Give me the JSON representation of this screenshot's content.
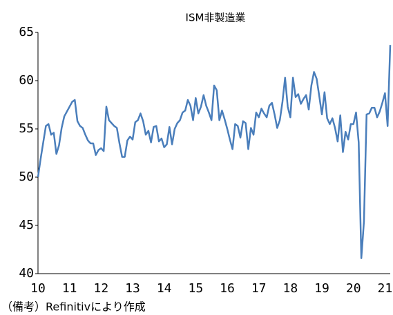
{
  "chart_data": {
    "type": "line",
    "title": "ISM非製造業",
    "note": "（備考）Refinitivにより作成",
    "categories": [
      "10",
      null,
      null,
      null,
      null,
      null,
      null,
      null,
      null,
      null,
      null,
      null,
      "11",
      null,
      null,
      null,
      null,
      null,
      null,
      null,
      null,
      null,
      null,
      null,
      "12",
      null,
      null,
      null,
      null,
      null,
      null,
      null,
      null,
      null,
      null,
      null,
      "13",
      null,
      null,
      null,
      null,
      null,
      null,
      null,
      null,
      null,
      null,
      null,
      "14",
      null,
      null,
      null,
      null,
      null,
      null,
      null,
      null,
      null,
      null,
      null,
      "15",
      null,
      null,
      null,
      null,
      null,
      null,
      null,
      null,
      null,
      null,
      null,
      "16",
      null,
      null,
      null,
      null,
      null,
      null,
      null,
      null,
      null,
      null,
      null,
      "17",
      null,
      null,
      null,
      null,
      null,
      null,
      null,
      null,
      null,
      null,
      null,
      "18",
      null,
      null,
      null,
      null,
      null,
      null,
      null,
      null,
      null,
      null,
      null,
      "19",
      null,
      null,
      null,
      null,
      null,
      null,
      null,
      null,
      null,
      null,
      null,
      "20",
      null,
      null,
      null,
      null,
      null,
      null,
      null,
      null,
      null,
      null,
      null,
      "21",
      null,
      null
    ],
    "values": [
      50.0,
      51.9,
      53.6,
      55.3,
      55.5,
      54.4,
      54.6,
      52.4,
      53.3,
      55.1,
      56.3,
      56.8,
      57.3,
      57.8,
      58.0,
      55.8,
      55.3,
      55.1,
      54.4,
      53.8,
      53.5,
      53.5,
      52.3,
      52.8,
      53.0,
      52.7,
      57.3,
      55.9,
      55.6,
      55.3,
      55.1,
      53.5,
      52.1,
      52.1,
      53.8,
      54.2,
      53.9,
      55.7,
      55.9,
      56.6,
      55.8,
      54.4,
      54.8,
      53.6,
      55.2,
      55.3,
      53.7,
      54.0,
      53.1,
      53.4,
      55.2,
      53.4,
      55.0,
      55.6,
      55.9,
      56.7,
      56.9,
      58.0,
      57.4,
      55.9,
      58.2,
      56.6,
      57.3,
      58.5,
      57.4,
      56.7,
      55.9,
      59.5,
      59.0,
      55.9,
      56.9,
      56.0,
      55.0,
      53.9,
      52.9,
      55.5,
      55.3,
      54.1,
      55.8,
      55.6,
      52.9,
      55.1,
      54.4,
      56.7,
      56.2,
      57.1,
      56.6,
      56.2,
      57.4,
      57.7,
      56.5,
      55.1,
      55.9,
      57.8,
      60.3,
      57.3,
      56.2,
      60.3,
      58.3,
      58.6,
      57.6,
      58.1,
      58.5,
      57.0,
      59.5,
      60.9,
      60.2,
      58.4,
      56.5,
      58.8,
      56.1,
      55.5,
      56.1,
      55.1,
      53.7,
      56.4,
      52.6,
      54.7,
      53.9,
      55.5,
      55.5,
      56.7,
      53.6,
      41.6,
      45.4,
      56.5,
      56.6,
      57.2,
      57.2,
      56.2,
      56.8,
      57.7,
      58.7,
      55.3,
      63.7
    ],
    "color": "#4a7ebb",
    "ylim": [
      40,
      65
    ],
    "yticks": [
      40,
      45,
      50,
      55,
      60,
      65
    ],
    "grid": false
  }
}
